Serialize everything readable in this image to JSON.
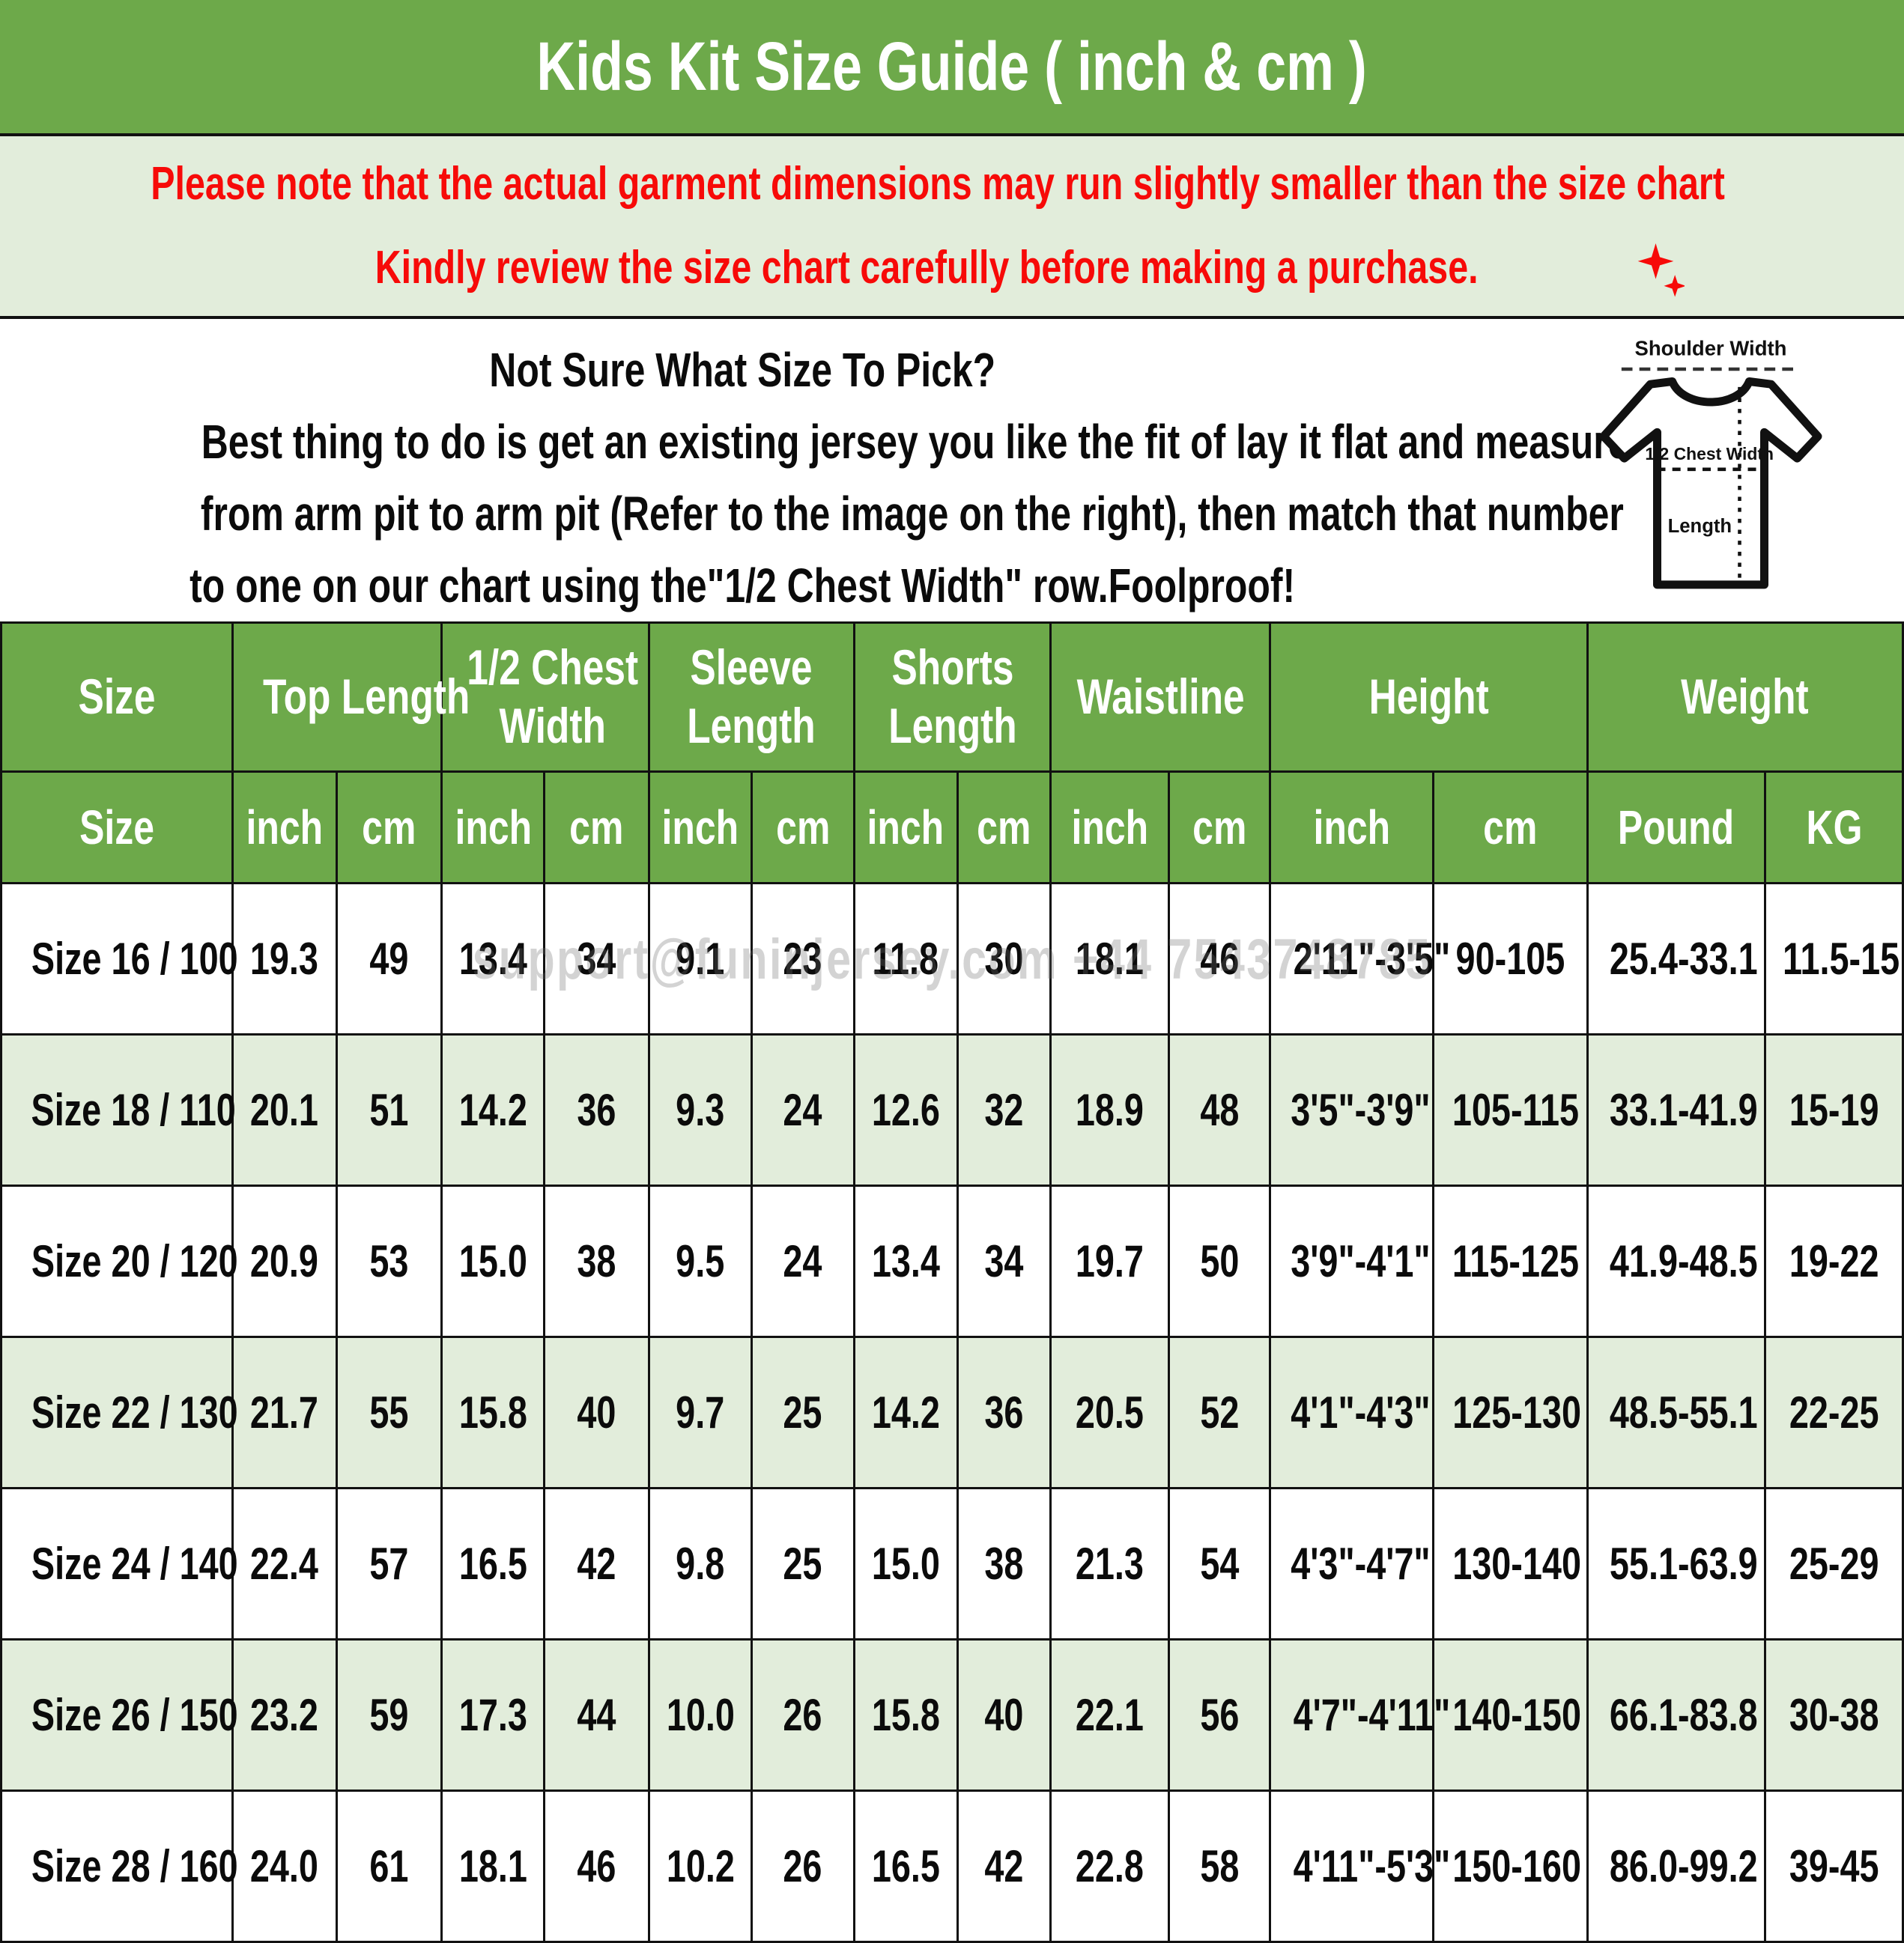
{
  "title": "Kids Kit Size Guide ( inch & cm )",
  "notice": {
    "line1": "Please note that the actual garment dimensions may run slightly smaller than the size chart ",
    "line1_suffix": " .",
    "line2": "Kindly review the size chart carefully before making a purchase.",
    "text_color": "#F70A08",
    "bg_color": "#E2EDDB"
  },
  "sizing_help": {
    "line1": "Not Sure What Size To Pick?",
    "line2": "Best thing to do is get an existing jersey you like the fit of lay it flat and measure",
    "line3": "from arm pit to arm pit (Refer to the image on the right), then match that number",
    "line4": "to one on our chart using the\"1/2 Chest Width\" row.Foolproof!"
  },
  "shirt_diagram": {
    "shoulder_label": "Shoulder Width",
    "chest_label": "1/2 Chest Width",
    "length_label": "Length"
  },
  "watermark": "support@funinjersey.com +44 7543748785",
  "table": {
    "header_groups": [
      {
        "label": "Size",
        "span": 1
      },
      {
        "label": "Top Length",
        "span": 2
      },
      {
        "label": "1/2 Chest\nWidth",
        "span": 2
      },
      {
        "label": "Sleeve\nLength",
        "span": 2
      },
      {
        "label": "Shorts\nLength",
        "span": 2
      },
      {
        "label": "Waistline",
        "span": 2
      },
      {
        "label": "Height",
        "span": 2
      },
      {
        "label": "Weight",
        "span": 2
      }
    ],
    "sub_headers": [
      "Size",
      "inch",
      "cm",
      "inch",
      "cm",
      "inch",
      "cm",
      "inch",
      "cm",
      "inch",
      "cm",
      "inch",
      "cm",
      "Pound",
      "KG"
    ],
    "rows": [
      [
        "Size 16 / 100",
        "19.3",
        "49",
        "13.4",
        "34",
        "9.1",
        "23",
        "11.8",
        "30",
        "18.1",
        "46",
        "2'11\"-3'5\"",
        "90-105",
        "25.4-33.1",
        "11.5-15"
      ],
      [
        "Size 18 / 110",
        "20.1",
        "51",
        "14.2",
        "36",
        "9.3",
        "24",
        "12.6",
        "32",
        "18.9",
        "48",
        "3'5\"-3'9\"",
        "105-115",
        "33.1-41.9",
        "15-19"
      ],
      [
        "Size 20 / 120",
        "20.9",
        "53",
        "15.0",
        "38",
        "9.5",
        "24",
        "13.4",
        "34",
        "19.7",
        "50",
        "3'9\"-4'1\"",
        "115-125",
        "41.9-48.5",
        "19-22"
      ],
      [
        "Size 22 / 130",
        "21.7",
        "55",
        "15.8",
        "40",
        "9.7",
        "25",
        "14.2",
        "36",
        "20.5",
        "52",
        "4'1\"-4'3\"",
        "125-130",
        "48.5-55.1",
        "22-25"
      ],
      [
        "Size 24 / 140",
        "22.4",
        "57",
        "16.5",
        "42",
        "9.8",
        "25",
        "15.0",
        "38",
        "21.3",
        "54",
        "4'3\"-4'7\"",
        "130-140",
        "55.1-63.9",
        "25-29"
      ],
      [
        "Size 26 / 150",
        "23.2",
        "59",
        "17.3",
        "44",
        "10.0",
        "26",
        "15.8",
        "40",
        "22.1",
        "56",
        "4'7\"-4'11\"",
        "140-150",
        "66.1-83.8",
        "30-38"
      ],
      [
        "Size 28 / 160",
        "24.0",
        "61",
        "18.1",
        "46",
        "10.2",
        "26",
        "16.5",
        "42",
        "22.8",
        "58",
        "4'11\"-5'3\"",
        "150-160",
        "86.0-99.2",
        "39-45"
      ]
    ]
  },
  "colors": {
    "header_green": "#6DA94A",
    "note_bg": "#E2EDDB",
    "alt_row_bg": "#E2EDDB",
    "note_red": "#F70A08",
    "border_black": "#111111"
  }
}
